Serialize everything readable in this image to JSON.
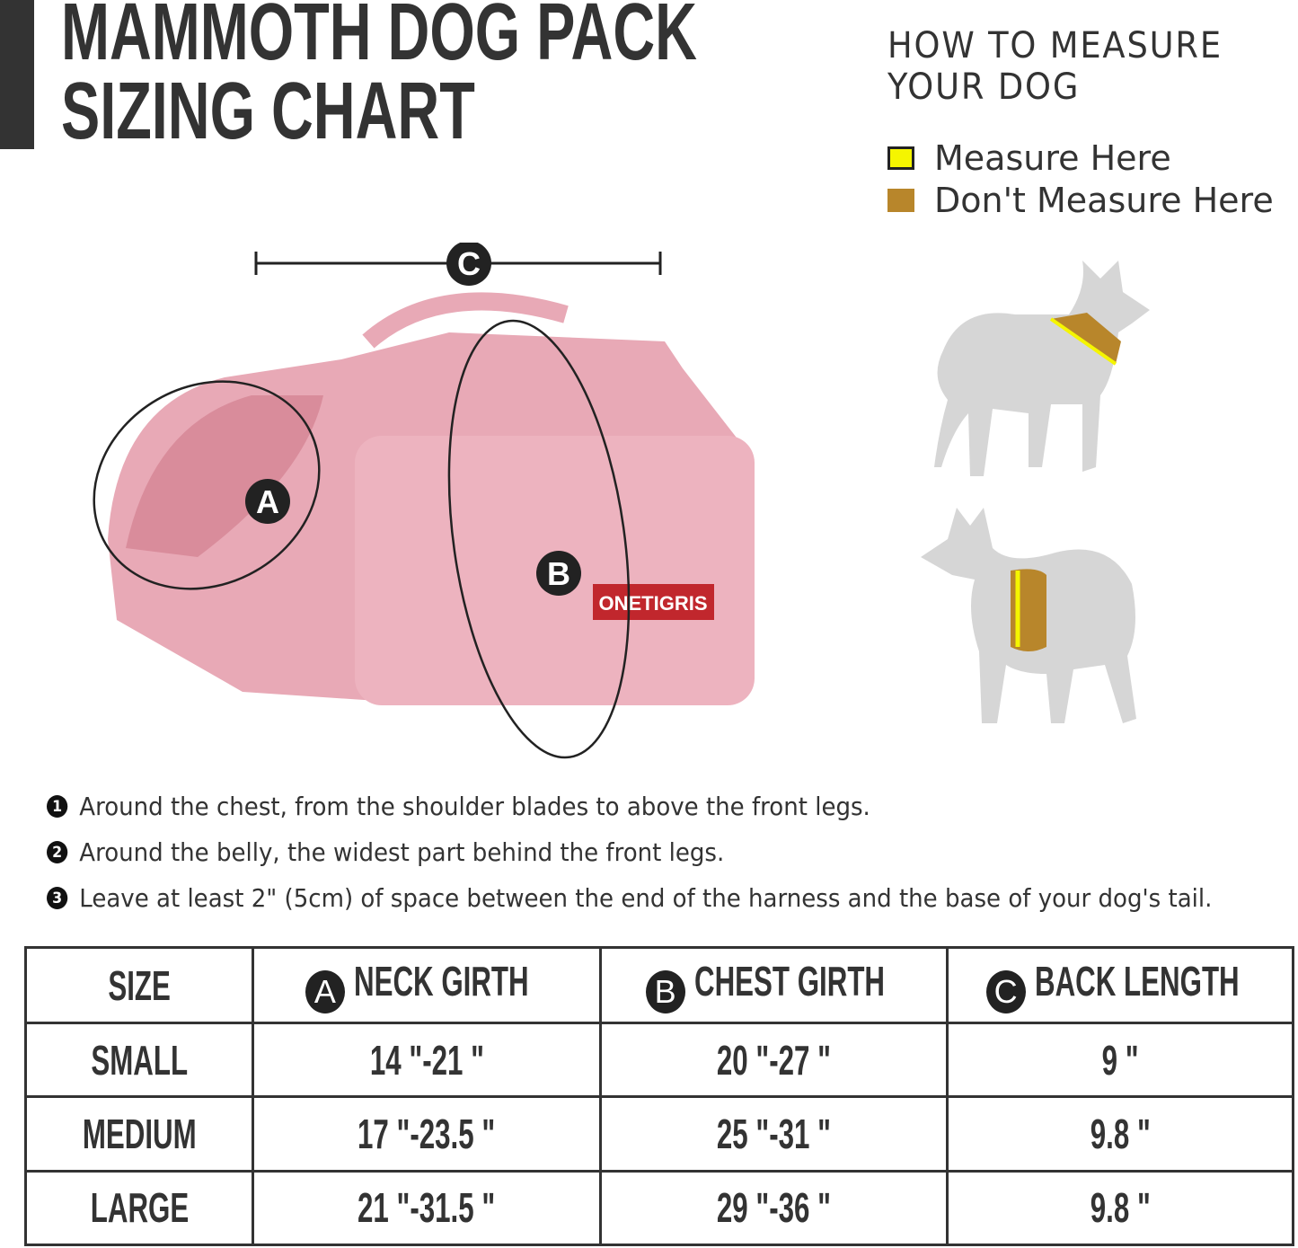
{
  "title": {
    "line1": "MAMMOTH DOG PACK",
    "line2": "SIZING CHART"
  },
  "how_to_measure": {
    "title_line1": "HOW TO MEASURE",
    "title_line2": "YOUR DOG",
    "legend": [
      {
        "label": "Measure Here",
        "color": "#f5f500"
      },
      {
        "label": "Don't Measure Here",
        "color": "#b8862b"
      }
    ]
  },
  "diagram": {
    "markers": [
      "A",
      "B",
      "C"
    ],
    "brand_label": "ONETIGRIS",
    "pack_color": "#e8a9b6"
  },
  "instructions": [
    {
      "num": "1",
      "text": "Around the chest, from the shoulder blades to above the front legs."
    },
    {
      "num": "2",
      "text": "Around the belly, the widest part behind the front legs."
    },
    {
      "num": "3",
      "text": "Leave at least 2\" (5cm) of space between the end of the harness and  the base of your dog's tail."
    }
  ],
  "table": {
    "headers": [
      {
        "badge": "",
        "label": "SIZE"
      },
      {
        "badge": "A",
        "label": "NECK GIRTH"
      },
      {
        "badge": "B",
        "label": "CHEST GIRTH"
      },
      {
        "badge": "C",
        "label": "BACK LENGTH"
      }
    ],
    "rows": [
      [
        "SMALL",
        "14 \"-21 \"",
        "20 \"-27 \"",
        "9 \""
      ],
      [
        "MEDIUM",
        "17 \"-23.5 \"",
        "25 \"-31 \"",
        "9.8 \""
      ],
      [
        "LARGE",
        "21 \"-31.5 \"",
        "29 \"-36 \"",
        "9.8 \""
      ]
    ]
  }
}
